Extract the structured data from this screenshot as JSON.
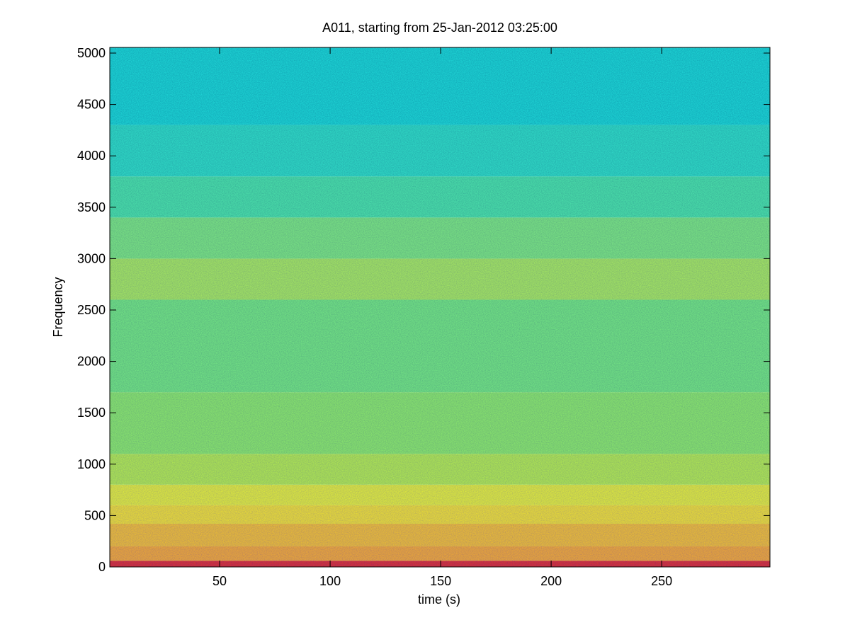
{
  "chart_data": {
    "type": "spectrogram",
    "title": "A011, starting from 25-Jan-2012 03:25:00",
    "x_label": "time (s)",
    "y_label": "Frequency",
    "xlim": [
      0.3,
      299
    ],
    "ylim": [
      0,
      5055
    ],
    "xticks": [
      50,
      100,
      150,
      200,
      250
    ],
    "yticks": [
      0,
      500,
      1000,
      1500,
      2000,
      2500,
      3000,
      3500,
      4000,
      4500,
      5000
    ],
    "bands": [
      {
        "from": 0,
        "to": 60,
        "color": "#e03a18"
      },
      {
        "from": 60,
        "to": 200,
        "color": "#f7b020"
      },
      {
        "from": 200,
        "to": 420,
        "color": "#f6c61c"
      },
      {
        "from": 420,
        "to": 600,
        "color": "#f4e61c"
      },
      {
        "from": 600,
        "to": 800,
        "color": "#e8f42a"
      },
      {
        "from": 800,
        "to": 1100,
        "color": "#b8f24c"
      },
      {
        "from": 1100,
        "to": 1700,
        "color": "#90f06c"
      },
      {
        "from": 1700,
        "to": 2600,
        "color": "#78ee84"
      },
      {
        "from": 2600,
        "to": 3000,
        "color": "#aaf05e"
      },
      {
        "from": 3000,
        "to": 3400,
        "color": "#80ee84"
      },
      {
        "from": 3400,
        "to": 3800,
        "color": "#50eaae"
      },
      {
        "from": 3800,
        "to": 4300,
        "color": "#34e4cc"
      },
      {
        "from": 4300,
        "to": 5055,
        "color": "#22dedc"
      }
    ]
  }
}
